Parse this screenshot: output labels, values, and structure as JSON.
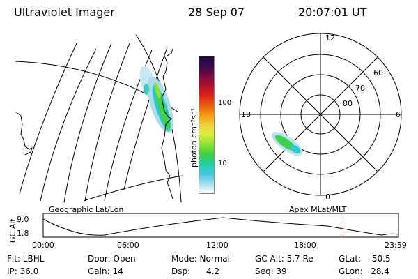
{
  "header": {
    "instrument": "Ultraviolet Imager",
    "date": "28 Sep 07",
    "time": "20:07:01 UT"
  },
  "colorbar": {
    "unit_label": "photon cm⁻²s⁻¹",
    "ticks": [
      "100",
      "10"
    ],
    "colors": [
      "#1a0a3c",
      "#3a0a50",
      "#7a0a40",
      "#b0102a",
      "#d8231a",
      "#ee5a10",
      "#f59a10",
      "#f2d040",
      "#d8ee40",
      "#8ee030",
      "#40d040",
      "#20d0a0",
      "#40c8e0",
      "#a0dcef",
      "#ffffff"
    ]
  },
  "polar": {
    "mlt_labels": {
      "top": "12",
      "left": "18",
      "right": "6",
      "bottom": "0"
    },
    "lat_labels": [
      "60",
      "70",
      "80"
    ]
  },
  "timeline": {
    "left_label": "Geographic Lat/Lon",
    "right_label": "Apex  MLat/MLT",
    "y_axis_label": "GC Alt",
    "y_ticks": [
      "9.0",
      "1.8"
    ],
    "x_ticks": [
      "00:00",
      "06:00",
      "12:00",
      "18:00",
      "23:59"
    ],
    "current_marker_hour": 20.12
  },
  "info": {
    "filter": "Flt: LBHL",
    "ip": "IP: 36.0",
    "door": "Door: Open",
    "gain": "Gain: 14",
    "mode": "Mode: Normal",
    "dsp": "Dsp:      4.2",
    "gc_alt": "GC Alt: 5.7 Re",
    "seq": "Seq: 39",
    "glat": "GLat:   -50.5",
    "glon": "GLon:   28.4"
  }
}
